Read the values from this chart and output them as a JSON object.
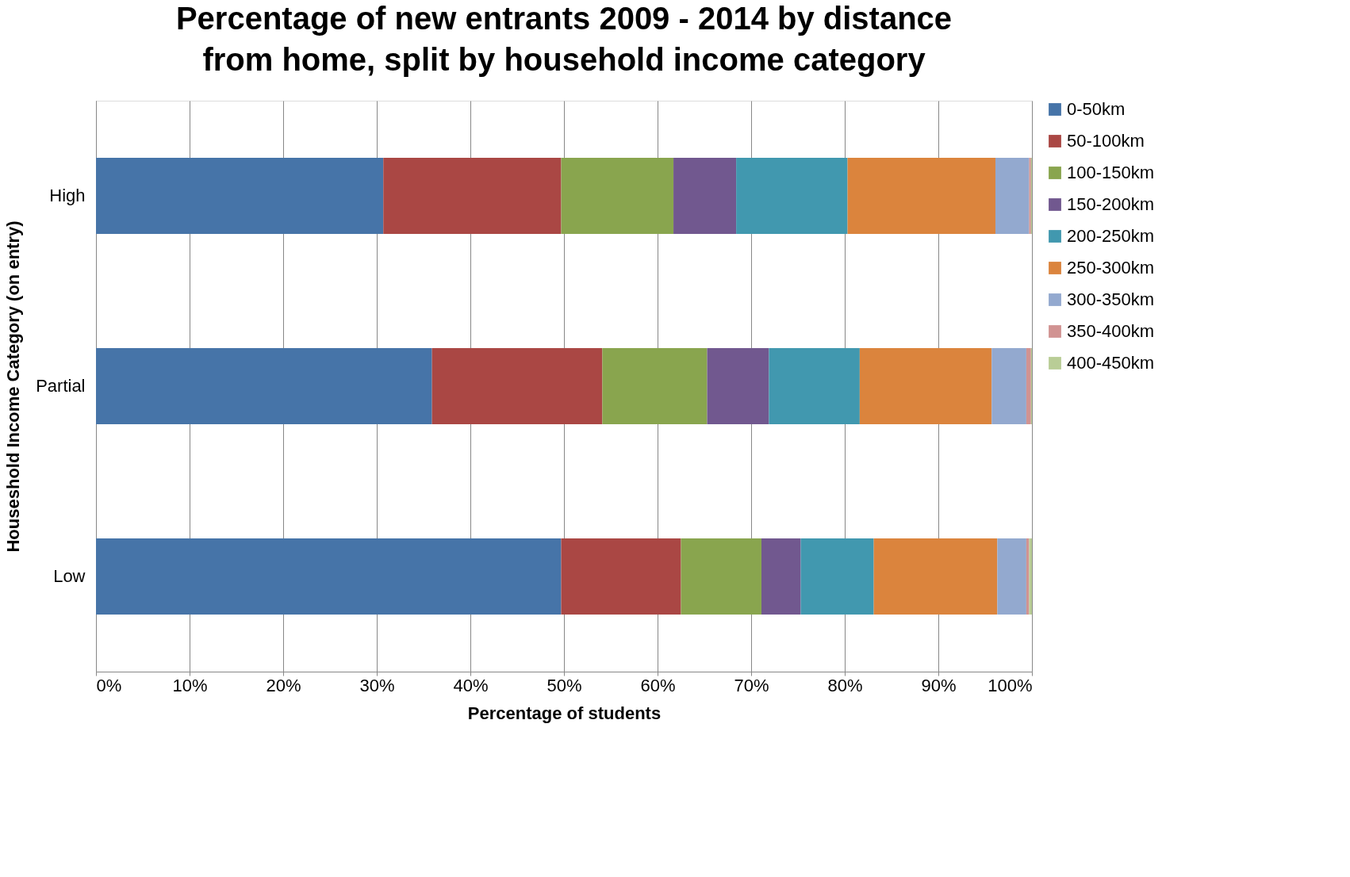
{
  "chart_data": {
    "type": "bar",
    "orientation": "horizontal",
    "stacked": true,
    "title": "Percentage of new entrants 2009 - 2014 by distance from home, split by household income category",
    "xlabel": "Percentage of students",
    "ylabel": "Houseshold Income Category (on entry)",
    "categories": [
      "High",
      "Partial",
      "Low"
    ],
    "series": [
      {
        "name": "0-50km",
        "color": "#4674a8",
        "values": [
          30.7,
          35.9,
          49.7
        ]
      },
      {
        "name": "50-100km",
        "color": "#aa4744",
        "values": [
          19.0,
          18.2,
          12.8
        ]
      },
      {
        "name": "100-150km",
        "color": "#89a54e",
        "values": [
          12.0,
          11.2,
          8.6
        ]
      },
      {
        "name": "150-200km",
        "color": "#71588f",
        "values": [
          6.7,
          6.6,
          4.2
        ]
      },
      {
        "name": "200-250km",
        "color": "#4198af",
        "values": [
          11.9,
          9.7,
          7.8
        ]
      },
      {
        "name": "250-300km",
        "color": "#db843d",
        "values": [
          15.8,
          14.1,
          13.2
        ]
      },
      {
        "name": "300-350km",
        "color": "#93a9cf",
        "values": [
          3.6,
          3.7,
          3.1
        ]
      },
      {
        "name": "350-400km",
        "color": "#d19392",
        "values": [
          0.2,
          0.5,
          0.3
        ]
      },
      {
        "name": "400-450km",
        "color": "#b9cd96",
        "values": [
          0.1,
          0.1,
          0.3
        ]
      }
    ],
    "xlim": [
      0,
      100
    ],
    "xticks": [
      {
        "value": 0,
        "label": "0%"
      },
      {
        "value": 10,
        "label": "10%"
      },
      {
        "value": 20,
        "label": "20%"
      },
      {
        "value": 30,
        "label": "30%"
      },
      {
        "value": 40,
        "label": "40%"
      },
      {
        "value": 50,
        "label": "50%"
      },
      {
        "value": 60,
        "label": "60%"
      },
      {
        "value": 70,
        "label": "70%"
      },
      {
        "value": 80,
        "label": "80%"
      },
      {
        "value": 90,
        "label": "90%"
      },
      {
        "value": 100,
        "label": "100%"
      }
    ],
    "grid": "x",
    "legend": "right"
  }
}
